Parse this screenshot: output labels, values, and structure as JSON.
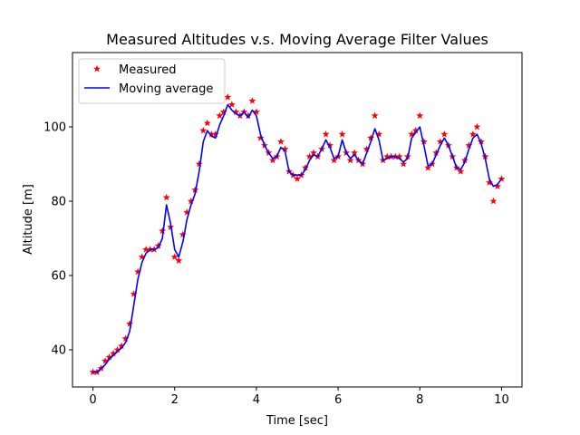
{
  "chart_data": {
    "type": "line",
    "title": "Measured Altitudes v.s. Moving Average Filter Values",
    "xlabel": "Time [sec]",
    "ylabel": "Altitude [m]",
    "xlim": [
      -0.5,
      10.5
    ],
    "ylim": [
      30,
      120
    ],
    "xticks": [
      0,
      2,
      4,
      6,
      8,
      10
    ],
    "yticks": [
      40,
      60,
      80,
      100
    ],
    "grid": false,
    "legend_position": "top-left",
    "series": [
      {
        "name": "Measured",
        "style": "star-markers",
        "color": "#ff0000",
        "x": [
          0.0,
          0.1,
          0.2,
          0.3,
          0.4,
          0.5,
          0.6,
          0.7,
          0.8,
          0.9,
          1.0,
          1.1,
          1.2,
          1.3,
          1.4,
          1.5,
          1.6,
          1.7,
          1.8,
          1.9,
          2.0,
          2.1,
          2.2,
          2.3,
          2.4,
          2.5,
          2.6,
          2.7,
          2.8,
          2.9,
          3.0,
          3.1,
          3.2,
          3.3,
          3.4,
          3.5,
          3.6,
          3.7,
          3.8,
          3.9,
          4.0,
          4.1,
          4.2,
          4.3,
          4.4,
          4.5,
          4.6,
          4.7,
          4.8,
          4.9,
          5.0,
          5.1,
          5.2,
          5.3,
          5.4,
          5.5,
          5.6,
          5.7,
          5.8,
          5.9,
          6.0,
          6.1,
          6.2,
          6.3,
          6.4,
          6.5,
          6.6,
          6.7,
          6.8,
          6.9,
          7.0,
          7.1,
          7.2,
          7.3,
          7.4,
          7.5,
          7.6,
          7.7,
          7.8,
          7.9,
          8.0,
          8.1,
          8.2,
          8.3,
          8.4,
          8.5,
          8.6,
          8.7,
          8.8,
          8.9,
          9.0,
          9.1,
          9.2,
          9.3,
          9.4,
          9.5,
          9.6,
          9.7,
          9.8,
          9.9,
          10.0
        ],
        "y": [
          34,
          34,
          35,
          37,
          38,
          39,
          40,
          41,
          43,
          47,
          55,
          61,
          65,
          67,
          67,
          67,
          68,
          72,
          81,
          73,
          65,
          64,
          71,
          77,
          80,
          83,
          90,
          99,
          101,
          98,
          98,
          103,
          104,
          108,
          106,
          104,
          103,
          104,
          103,
          107,
          104,
          97,
          95,
          93,
          91,
          92,
          96,
          94,
          88,
          87,
          86,
          87,
          89,
          92,
          93,
          92,
          94,
          98,
          95,
          91,
          92,
          98,
          93,
          91,
          93,
          91,
          90,
          94,
          97,
          103,
          98,
          91,
          92,
          92,
          92,
          92,
          90,
          92,
          98,
          99,
          103,
          96,
          89,
          90,
          93,
          96,
          98,
          95,
          92,
          89,
          88,
          91,
          95,
          98,
          100,
          96,
          92,
          85,
          80,
          84,
          86
        ]
      },
      {
        "name": "Moving average",
        "style": "line",
        "color": "#0000ff",
        "x": [
          0.0,
          0.1,
          0.2,
          0.3,
          0.4,
          0.5,
          0.6,
          0.7,
          0.8,
          0.9,
          1.0,
          1.1,
          1.2,
          1.3,
          1.4,
          1.5,
          1.6,
          1.7,
          1.8,
          1.9,
          2.0,
          2.1,
          2.2,
          2.3,
          2.4,
          2.5,
          2.6,
          2.7,
          2.8,
          2.9,
          3.0,
          3.1,
          3.2,
          3.3,
          3.4,
          3.5,
          3.6,
          3.7,
          3.8,
          3.9,
          4.0,
          4.1,
          4.2,
          4.3,
          4.4,
          4.5,
          4.6,
          4.7,
          4.8,
          4.9,
          5.0,
          5.1,
          5.2,
          5.3,
          5.4,
          5.5,
          5.6,
          5.7,
          5.8,
          5.9,
          6.0,
          6.1,
          6.2,
          6.3,
          6.4,
          6.5,
          6.6,
          6.7,
          6.8,
          6.9,
          7.0,
          7.1,
          7.2,
          7.3,
          7.4,
          7.5,
          7.6,
          7.7,
          7.8,
          7.9,
          8.0,
          8.1,
          8.2,
          8.3,
          8.4,
          8.5,
          8.6,
          8.7,
          8.8,
          8.9,
          9.0,
          9.1,
          9.2,
          9.3,
          9.4,
          9.5,
          9.6,
          9.7,
          9.8,
          9.9,
          10.0
        ],
        "y": [
          34,
          34,
          35,
          36,
          37.5,
          38.5,
          39.5,
          40.5,
          42,
          45,
          52,
          59,
          63.5,
          66,
          67,
          67,
          67.5,
          70,
          79,
          74,
          67,
          65,
          69,
          75,
          79,
          82,
          88,
          96,
          99,
          97.5,
          97,
          100.5,
          103,
          106,
          104.5,
          103.5,
          103,
          104,
          102.5,
          104.5,
          103,
          98,
          95,
          93,
          91.5,
          92,
          94.5,
          93.5,
          88,
          87,
          87,
          87,
          88.5,
          91,
          92.5,
          92,
          94,
          96.5,
          94.5,
          91.5,
          92,
          96.5,
          93,
          91.5,
          92.5,
          91,
          90,
          93,
          96,
          99.5,
          96.5,
          91,
          91.5,
          92,
          92,
          91.5,
          90.5,
          91.5,
          97,
          98.5,
          100,
          95,
          89.5,
          90,
          92.5,
          95,
          97,
          95,
          92,
          89,
          88.5,
          90.5,
          94,
          97,
          98,
          95.5,
          91.5,
          86,
          84,
          84.5,
          86
        ]
      }
    ]
  }
}
